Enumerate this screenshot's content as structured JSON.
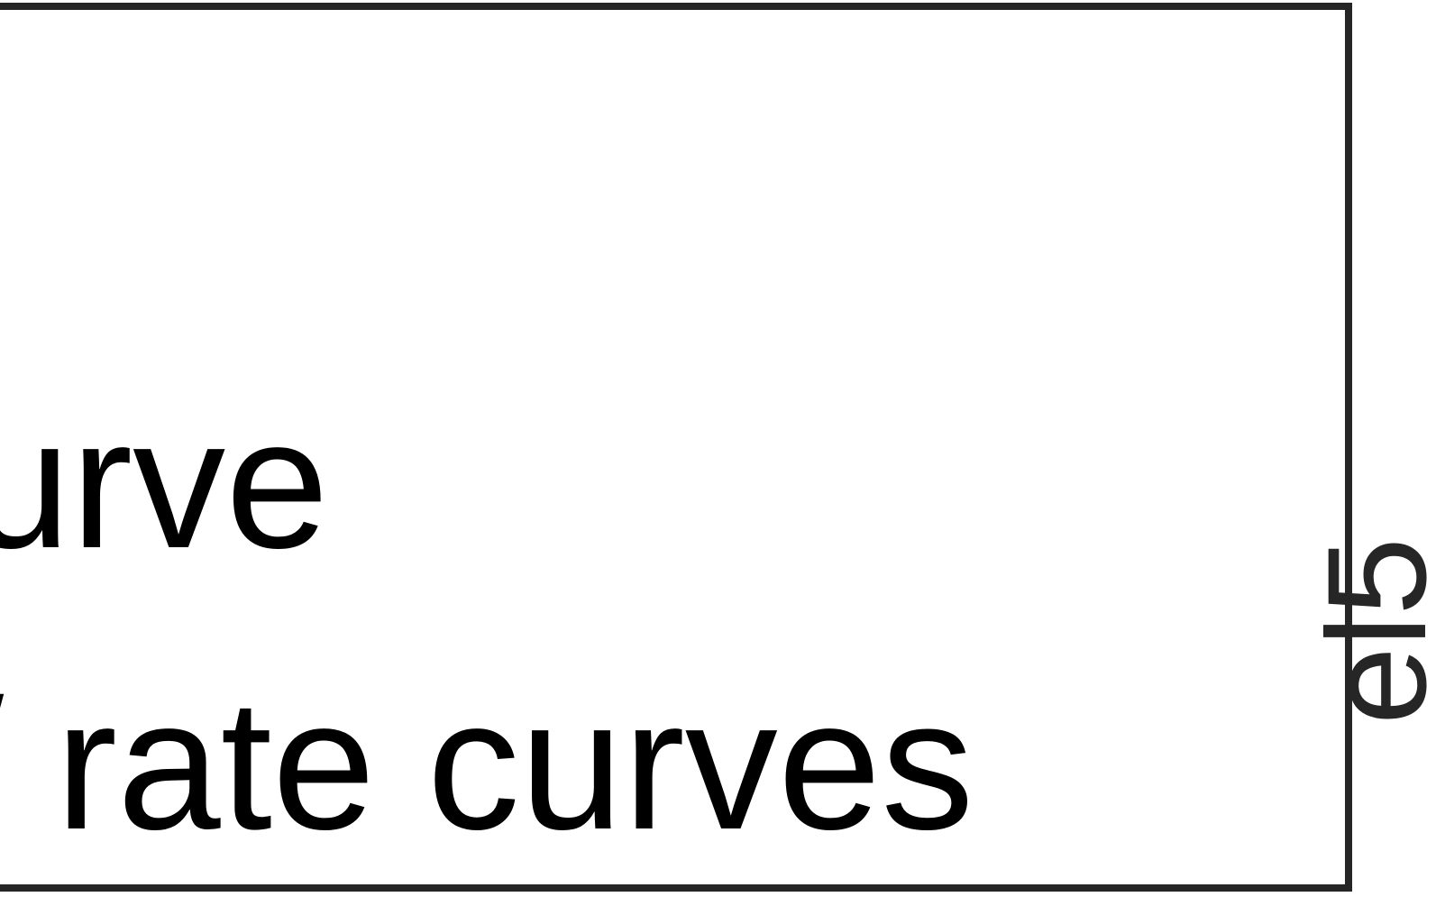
{
  "legend": {
    "line_1": "urve",
    "line_2": "/ rate curves"
  },
  "side_label": "el5",
  "colors": {
    "border": "#262626",
    "text": "#000000",
    "side_text": "#262626",
    "background": "#ffffff"
  }
}
